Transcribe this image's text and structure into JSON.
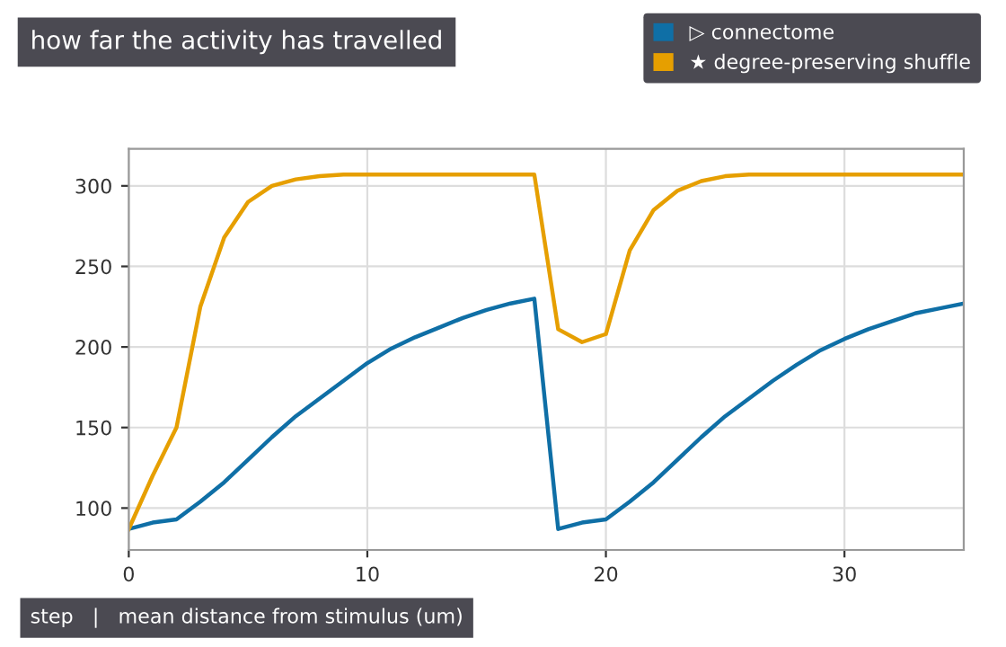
{
  "chart_data": {
    "type": "line",
    "title": "how far the activity has travelled",
    "xlabel": "step   |   mean distance from stimulus (um)",
    "x": [
      0,
      1,
      2,
      3,
      4,
      5,
      6,
      7,
      8,
      9,
      10,
      11,
      12,
      13,
      14,
      15,
      16,
      17,
      18,
      19,
      20,
      21,
      22,
      23,
      24,
      25,
      26,
      27,
      28,
      29,
      30,
      31,
      32,
      33,
      34,
      35
    ],
    "series": [
      {
        "name": "▷ connectome",
        "color": "#0f6fa6",
        "values": [
          87,
          91,
          93,
          104,
          116,
          130,
          144,
          157,
          168,
          179,
          190,
          199,
          206,
          212,
          218,
          223,
          227,
          230,
          87,
          91,
          93,
          104,
          116,
          130,
          144,
          157,
          168,
          179,
          189,
          198,
          205,
          211,
          216,
          221,
          224,
          227
        ]
      },
      {
        "name": "★ degree-preserving shuffle",
        "color": "#e69f00",
        "values": [
          87,
          120,
          150,
          225,
          268,
          290,
          300,
          304,
          306,
          307,
          307,
          307,
          307,
          307,
          307,
          307,
          307,
          307,
          211,
          203,
          208,
          260,
          285,
          297,
          303,
          306,
          307,
          307,
          307,
          307,
          307,
          307,
          307,
          307,
          307,
          307
        ]
      }
    ],
    "xlim": [
      0,
      35
    ],
    "ylim": [
      74,
      323
    ],
    "xticks": [
      0,
      10,
      20,
      30
    ],
    "yticks": [
      100,
      150,
      200,
      250,
      300
    ],
    "grid": true,
    "legend": "top right",
    "line_style": "solid",
    "marker": "none"
  }
}
